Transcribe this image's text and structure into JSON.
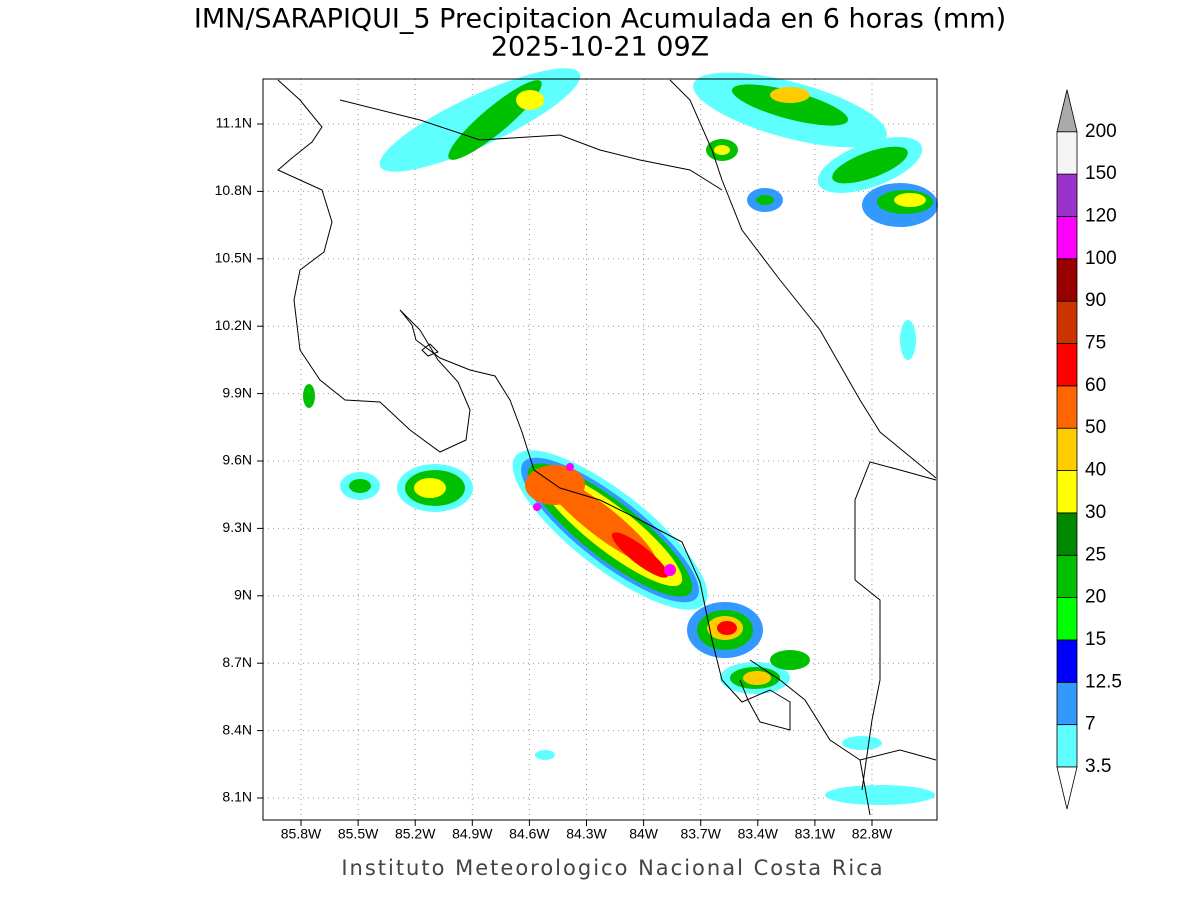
{
  "title": {
    "line1": "IMN/SARAPIQUI_5 Precipitacion Acumulada en 6 horas (mm)",
    "line2": "2025-10-21 09Z"
  },
  "lat_labels": [
    "11.1N",
    "10.8N",
    "10.5N",
    "10.2N",
    "9.9N",
    "9.6N",
    "9.3N",
    "9N",
    "8.7N",
    "8.4N",
    "8.1N"
  ],
  "lon_labels": [
    "85.8W",
    "85.5W",
    "85.2W",
    "84.9W",
    "84.6W",
    "84.3W",
    "84W",
    "83.7W",
    "83.4W",
    "83.1W",
    "82.8W"
  ],
  "colorbar": {
    "labels": [
      "3.5",
      "7",
      "12.5",
      "15",
      "20",
      "25",
      "30",
      "40",
      "50",
      "60",
      "75",
      "90",
      "100",
      "120",
      "150",
      "200"
    ],
    "colors": [
      "#60ffff",
      "#3399ff",
      "#0000ff",
      "#00ff00",
      "#00c000",
      "#008800",
      "#ffff00",
      "#ffcc00",
      "#ff6600",
      "#ff0000",
      "#cc3300",
      "#990000",
      "#ff00ff",
      "#9933cc",
      "#f5f5f5"
    ],
    "under_color": "#ffffff",
    "over_color": "#aaaaaa"
  },
  "footer": "Instituto Meteorologico Nacional Costa Rica"
}
